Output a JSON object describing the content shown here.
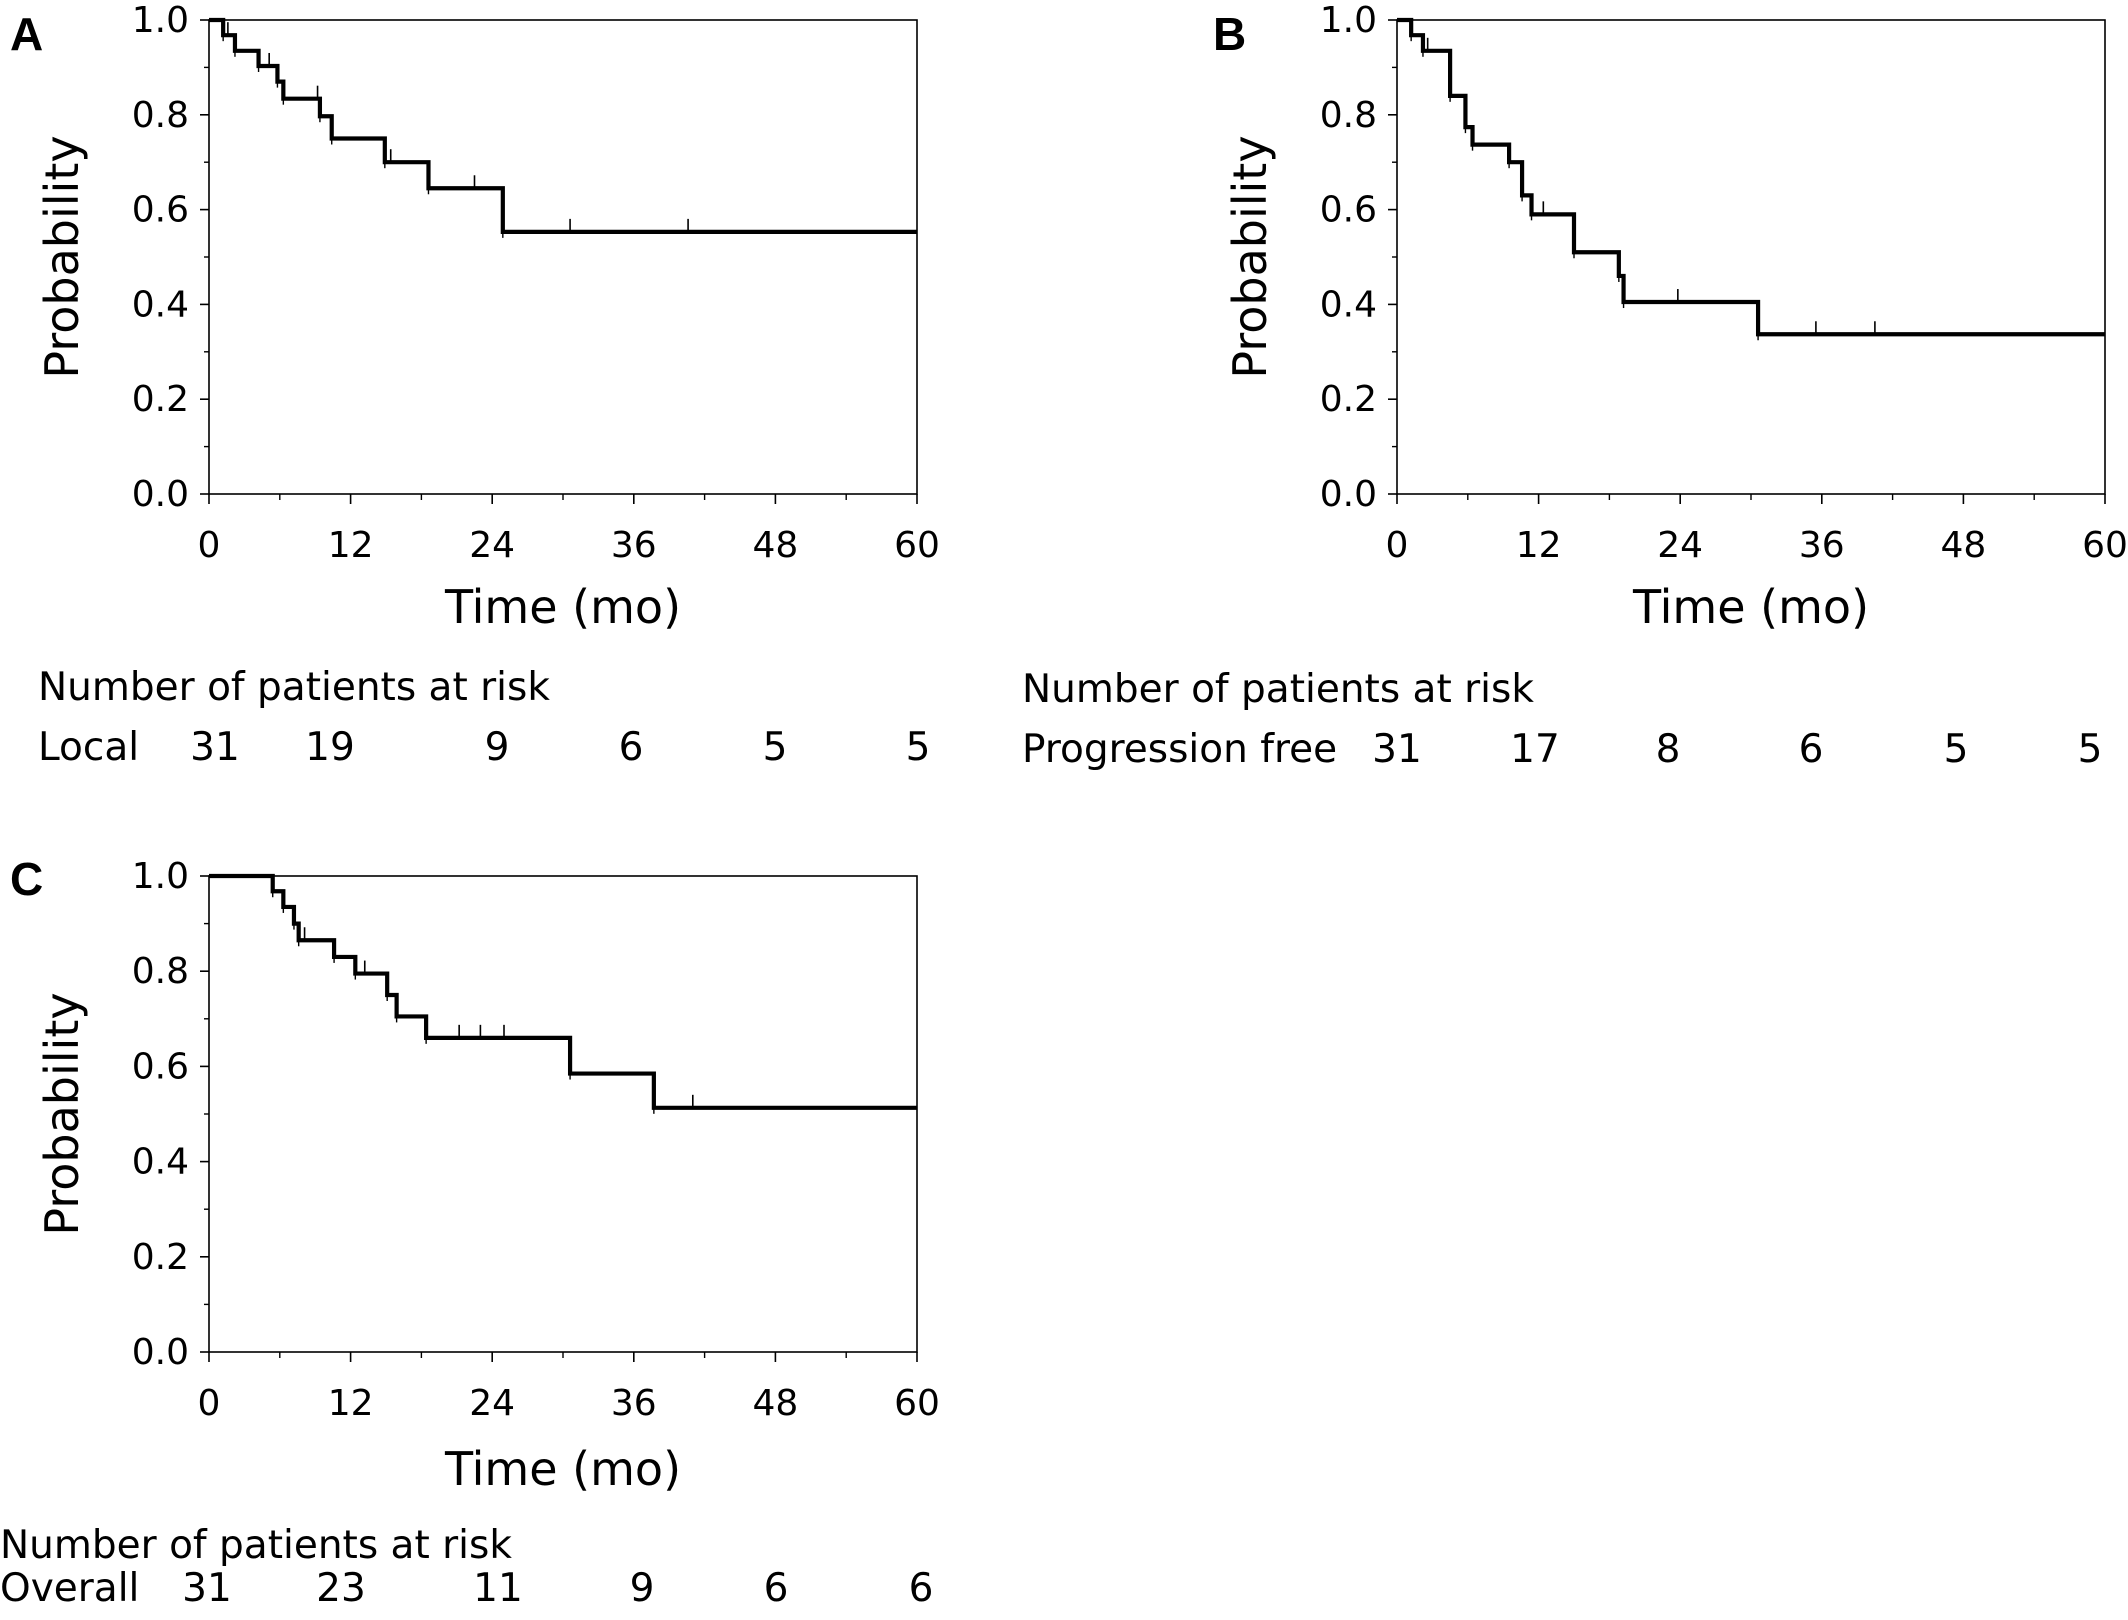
{
  "figure": {
    "background": "#ffffff",
    "line_color": "#000000"
  },
  "chart_data": [
    {
      "panel": "A",
      "type": "line",
      "title": "",
      "xlabel": "Time (mo)",
      "ylabel": "Probability",
      "xlim": [
        0,
        60
      ],
      "ylim": [
        0,
        1.0
      ],
      "x_ticks": [
        "0",
        "12",
        "24",
        "36",
        "48",
        "60"
      ],
      "y_ticks": [
        "0.0",
        "0.2",
        "0.4",
        "0.6",
        "0.8",
        "1.0"
      ],
      "grid": false,
      "series": [
        {
          "steps": [
            [
              0,
              1.0
            ],
            [
              1.2,
              0.968
            ],
            [
              2.2,
              0.935
            ],
            [
              4.2,
              0.903
            ],
            [
              5.8,
              0.87
            ],
            [
              6.3,
              0.834
            ],
            [
              9.4,
              0.797
            ],
            [
              10.4,
              0.75
            ],
            [
              14.9,
              0.7
            ],
            [
              18.6,
              0.645
            ],
            [
              24.9,
              0.553
            ],
            [
              60,
              0.553
            ]
          ],
          "censors": [
            [
              1.6,
              0.968
            ],
            [
              5.1,
              0.903
            ],
            [
              9.2,
              0.834
            ],
            [
              15.4,
              0.7
            ],
            [
              22.5,
              0.645
            ],
            [
              30.6,
              0.553
            ],
            [
              40.6,
              0.553
            ]
          ]
        }
      ],
      "risk_table": {
        "title": "Number of patients at risk",
        "label": "Local",
        "times": [
          0,
          12,
          24,
          36,
          48,
          60
        ],
        "counts": [
          "31",
          "19",
          "9",
          "6",
          "5",
          "5"
        ]
      }
    },
    {
      "panel": "B",
      "type": "line",
      "title": "",
      "xlabel": "Time (mo)",
      "ylabel": "Probability",
      "xlim": [
        0,
        60
      ],
      "ylim": [
        0,
        1.0
      ],
      "x_ticks": [
        "0",
        "12",
        "24",
        "36",
        "48",
        "60"
      ],
      "y_ticks": [
        "0.0",
        "0.2",
        "0.4",
        "0.6",
        "0.8",
        "1.0"
      ],
      "grid": false,
      "series": [
        {
          "steps": [
            [
              0,
              1.0
            ],
            [
              1.2,
              0.968
            ],
            [
              2.2,
              0.935
            ],
            [
              4.5,
              0.84
            ],
            [
              5.8,
              0.774
            ],
            [
              6.4,
              0.737
            ],
            [
              9.5,
              0.7
            ],
            [
              10.6,
              0.63
            ],
            [
              11.4,
              0.59
            ],
            [
              15.0,
              0.51
            ],
            [
              18.8,
              0.46
            ],
            [
              19.2,
              0.405
            ],
            [
              30.6,
              0.337
            ],
            [
              60,
              0.337
            ]
          ],
          "censors": [
            [
              2.6,
              0.935
            ],
            [
              12.4,
              0.59
            ],
            [
              23.8,
              0.405
            ],
            [
              35.5,
              0.337
            ],
            [
              40.5,
              0.337
            ]
          ]
        }
      ],
      "risk_table": {
        "title": "Number of patients at risk",
        "label": "Progression free",
        "times": [
          0,
          12,
          24,
          36,
          48,
          60
        ],
        "counts": [
          "31",
          "17",
          "8",
          "6",
          "5",
          "5"
        ]
      }
    },
    {
      "panel": "C",
      "type": "line",
      "title": "",
      "xlabel": "Time (mo)",
      "ylabel": "Probability",
      "xlim": [
        0,
        60
      ],
      "ylim": [
        0,
        1.0
      ],
      "x_ticks": [
        "0",
        "12",
        "24",
        "36",
        "48",
        "60"
      ],
      "y_ticks": [
        "0.0",
        "0.2",
        "0.4",
        "0.6",
        "0.8",
        "1.0"
      ],
      "grid": false,
      "series": [
        {
          "steps": [
            [
              0,
              1.0
            ],
            [
              5.4,
              0.968
            ],
            [
              6.3,
              0.935
            ],
            [
              7.2,
              0.9
            ],
            [
              7.6,
              0.865
            ],
            [
              10.6,
              0.83
            ],
            [
              12.4,
              0.795
            ],
            [
              15.1,
              0.75
            ],
            [
              15.9,
              0.705
            ],
            [
              18.4,
              0.66
            ],
            [
              30.6,
              0.585
            ],
            [
              37.7,
              0.513
            ],
            [
              60,
              0.513
            ]
          ],
          "censors": [
            [
              8.1,
              0.865
            ],
            [
              13.2,
              0.795
            ],
            [
              21.2,
              0.66
            ],
            [
              23.0,
              0.66
            ],
            [
              25.0,
              0.66
            ],
            [
              41.0,
              0.513
            ]
          ]
        }
      ],
      "risk_table": {
        "title": "Number of patients at risk",
        "label": "Overall",
        "times": [
          0,
          12,
          24,
          36,
          48,
          60
        ],
        "counts": [
          "31",
          "23",
          "11",
          "9",
          "6",
          "6"
        ]
      }
    }
  ]
}
